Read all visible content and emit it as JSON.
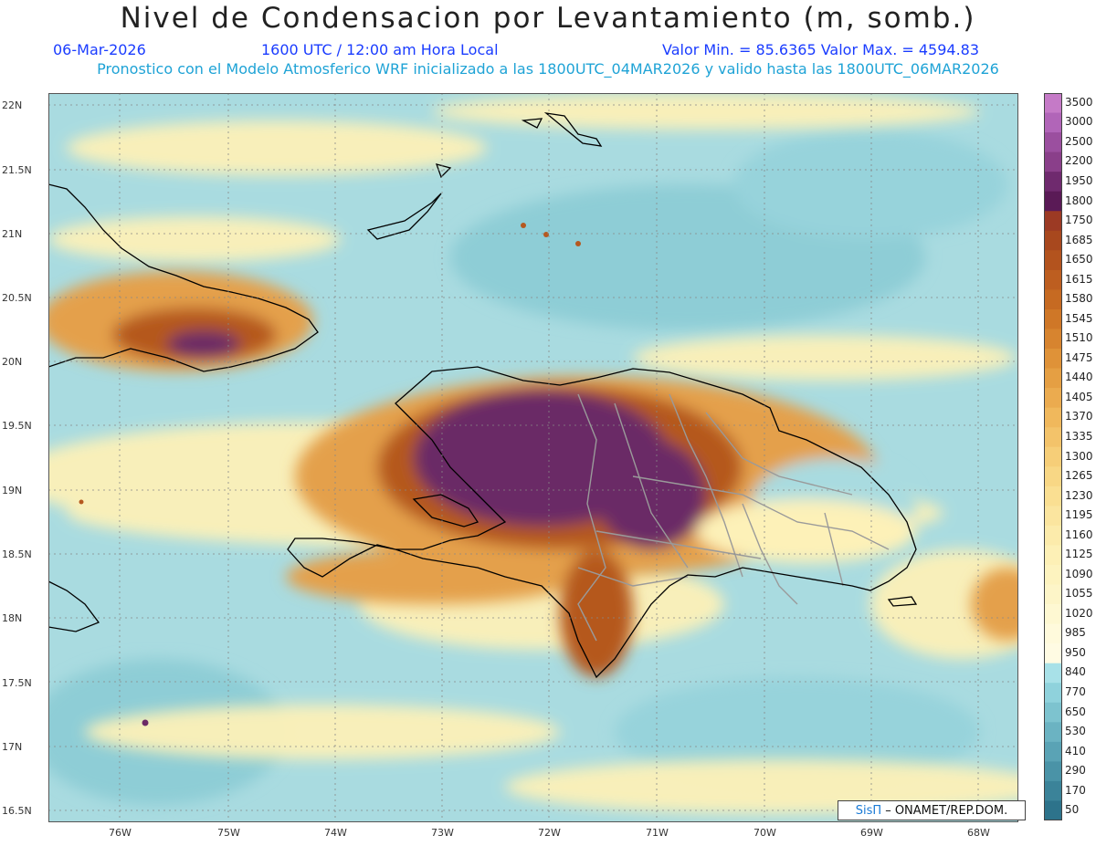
{
  "header": {
    "title": "Nivel de Condensacion por Levantamiento (m, somb.)",
    "date": "06-Mar-2026",
    "time": "1600 UTC / 12:00 am Hora Local",
    "min_max": "Valor Min. = 85.6365   Valor Max. = 4594.83",
    "subtitle": "Pronostico con el Modelo Atmosferico WRF inicializado a las 1800UTC_04MAR2026 y valido hasta las  1800UTC_06MAR2026"
  },
  "axes": {
    "lat_labels": [
      "22N",
      "21.5N",
      "21N",
      "20.5N",
      "20N",
      "19.5N",
      "19N",
      "18.5N",
      "18N",
      "17.5N",
      "17N",
      "16.5N"
    ],
    "lon_labels": [
      "76W",
      "75W",
      "74W",
      "73W",
      "72W",
      "71W",
      "70W",
      "69W",
      "68W"
    ]
  },
  "colorbar": {
    "labels": [
      "3500",
      "3000",
      "2500",
      "2200",
      "1950",
      "1800",
      "1750",
      "1685",
      "1650",
      "1615",
      "1580",
      "1545",
      "1510",
      "1475",
      "1440",
      "1405",
      "1370",
      "1335",
      "1300",
      "1265",
      "1230",
      "1195",
      "1160",
      "1125",
      "1090",
      "1055",
      "1020",
      "985",
      "950",
      "840",
      "770",
      "650",
      "530",
      "410",
      "290",
      "170",
      "50"
    ],
    "colors": [
      "#c57ac7",
      "#b165b8",
      "#9b4f9f",
      "#8a3f8a",
      "#6f2a6e",
      "#5a1a56",
      "#9c3a24",
      "#a8481e",
      "#b3531e",
      "#bd5e20",
      "#c66a22",
      "#cf7727",
      "#d7842f",
      "#df9238",
      "#e59f43",
      "#ebab4f",
      "#f0b85c",
      "#f3c36a",
      "#f6ce78",
      "#f8d785",
      "#fadf92",
      "#fbe59f",
      "#fcebab",
      "#fdf0b6",
      "#fdf3bf",
      "#fdf5c8",
      "#fef8d2",
      "#fffadc",
      "#fffbe3",
      "#a8e1e8",
      "#8fd2dc",
      "#7dc3cf",
      "#6bb3c2",
      "#5aa3b5",
      "#4a93a7",
      "#3b8399",
      "#2d738b"
    ]
  },
  "credit": {
    "brand": "SisΠ",
    "text": "– ONAMET/REP.DOM."
  },
  "map_colors": {
    "sea": "#a9dbe0",
    "sea_deep": "#8ecdd6",
    "yellow": "#fdf1b8",
    "orange": "#e4a04c",
    "brown": "#b5581f",
    "purple": "#6b2a66",
    "coast": "#000000",
    "province": "#9a9a9a"
  }
}
